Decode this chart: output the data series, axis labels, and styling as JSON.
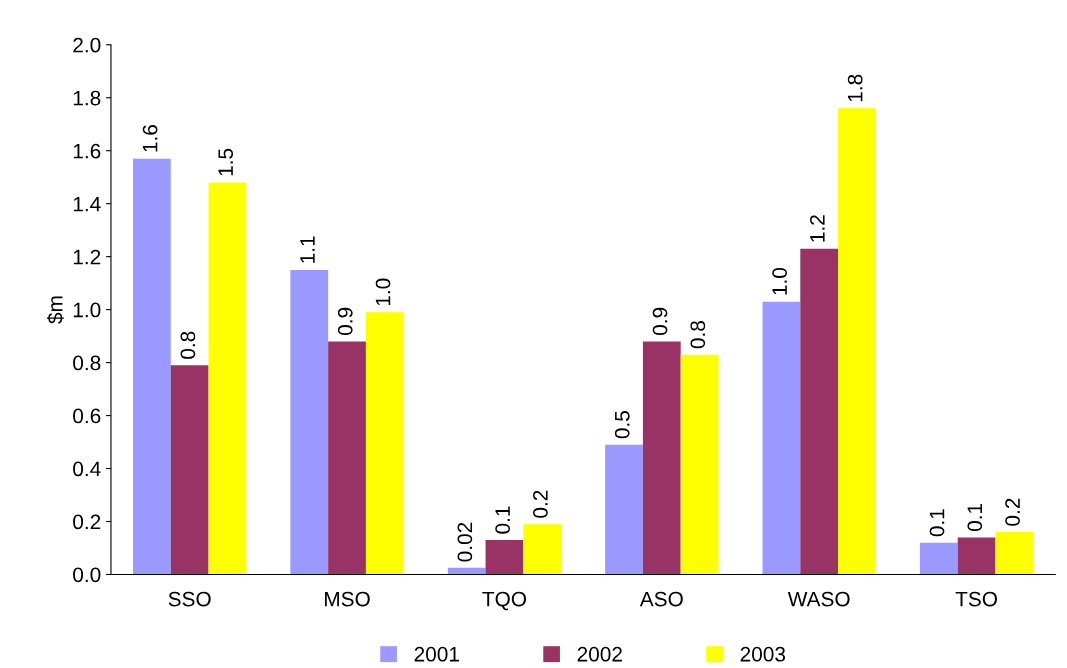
{
  "chart_data": {
    "type": "bar",
    "ylabel": "$m",
    "categories": [
      "SSO",
      "MSO",
      "TQO",
      "ASO",
      "WASO",
      "TSO"
    ],
    "series": [
      {
        "name": "2001",
        "color": "#9999ff",
        "values": [
          1.57,
          1.15,
          0.025,
          0.49,
          1.03,
          0.12
        ],
        "value_labels": [
          "1.6",
          "1.1",
          "0.02",
          "0.5",
          "1.0",
          "0.1"
        ]
      },
      {
        "name": "2002",
        "color": "#993366",
        "values": [
          0.79,
          0.88,
          0.13,
          0.88,
          1.23,
          0.14
        ],
        "value_labels": [
          "0.8",
          "0.9",
          "0.1",
          "0.9",
          "1.2",
          "0.1"
        ]
      },
      {
        "name": "2003",
        "color": "#ffff00",
        "values": [
          1.48,
          0.99,
          0.19,
          0.83,
          1.76,
          0.16
        ],
        "value_labels": [
          "1.5",
          "1.0",
          "0.2",
          "0.8",
          "1.8",
          "0.2"
        ]
      }
    ],
    "ylim": [
      0,
      2.0
    ],
    "yticks": [
      {
        "value": 0,
        "label": "0.0"
      },
      {
        "value": 0.2,
        "label": "0.2"
      },
      {
        "value": 0.4,
        "label": "0.4"
      },
      {
        "value": 0.6,
        "label": "0.6"
      },
      {
        "value": 0.8,
        "label": "0.8"
      },
      {
        "value": 1.0,
        "label": "1.0"
      },
      {
        "value": 1.2,
        "label": "1.2"
      },
      {
        "value": 1.4,
        "label": "1.4"
      },
      {
        "value": 1.6,
        "label": "1.6"
      },
      {
        "value": 1.8,
        "label": "1.8"
      },
      {
        "value": 2.0,
        "label": "2.0"
      }
    ],
    "grid": false,
    "legend": "bottom"
  }
}
